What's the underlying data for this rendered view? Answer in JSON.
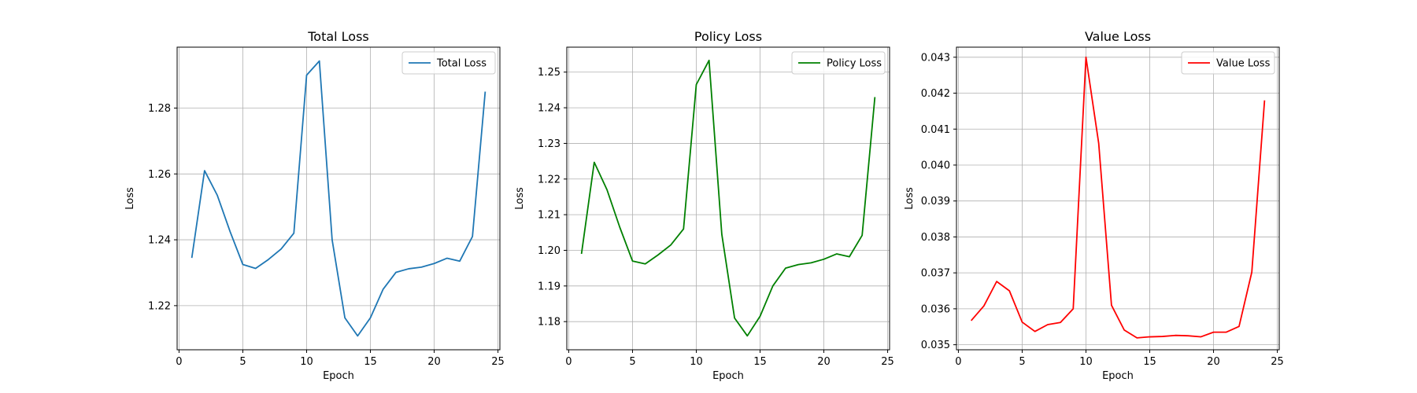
{
  "chart_data": [
    {
      "type": "line",
      "title": "Total Loss",
      "xlabel": "Epoch",
      "ylabel": "Loss",
      "xlim": [
        -0.15,
        25.15
      ],
      "ylim": [
        1.2066,
        1.2985
      ],
      "xticks": [
        0,
        5,
        10,
        15,
        20,
        25
      ],
      "yticks": [
        1.22,
        1.24,
        1.26,
        1.28
      ],
      "ytick_labels": [
        "1.22",
        "1.24",
        "1.26",
        "1.28"
      ],
      "grid": true,
      "legend_position": "top-right",
      "series": [
        {
          "name": "Total Loss",
          "color": "#1f77b4",
          "x": [
            1,
            2,
            3,
            4,
            5,
            6,
            7,
            8,
            9,
            10,
            11,
            12,
            13,
            14,
            15,
            16,
            17,
            18,
            19,
            20,
            21,
            22,
            23,
            24
          ],
          "y": [
            1.2345,
            1.261,
            1.2535,
            1.2425,
            1.2325,
            1.2313,
            1.234,
            1.2372,
            1.242,
            1.29,
            1.2943,
            1.24,
            1.2163,
            1.2108,
            1.2163,
            1.225,
            1.2301,
            1.2312,
            1.2317,
            1.2328,
            1.2344,
            1.2335,
            1.241,
            1.285
          ]
        }
      ]
    },
    {
      "type": "line",
      "title": "Policy Loss",
      "xlabel": "Epoch",
      "ylabel": "Loss",
      "xlim": [
        -0.15,
        25.15
      ],
      "ylim": [
        1.1721,
        1.257
      ],
      "xticks": [
        0,
        5,
        10,
        15,
        20,
        25
      ],
      "yticks": [
        1.18,
        1.19,
        1.2,
        1.21,
        1.22,
        1.23,
        1.24,
        1.25
      ],
      "ytick_labels": [
        "1.18",
        "1.19",
        "1.20",
        "1.21",
        "1.22",
        "1.23",
        "1.24",
        "1.25"
      ],
      "grid": true,
      "legend_position": "top-right",
      "series": [
        {
          "name": "Policy Loss",
          "color": "#008000",
          "x": [
            1,
            2,
            3,
            4,
            5,
            6,
            7,
            8,
            9,
            10,
            11,
            12,
            13,
            14,
            15,
            16,
            17,
            18,
            19,
            20,
            21,
            22,
            23,
            24
          ],
          "y": [
            1.199,
            1.2247,
            1.217,
            1.2065,
            1.197,
            1.1962,
            1.1987,
            1.2015,
            1.206,
            1.2465,
            1.2533,
            1.2045,
            1.181,
            1.176,
            1.1815,
            1.19,
            1.195,
            1.196,
            1.1965,
            1.1975,
            1.199,
            1.1982,
            1.2042,
            1.243
          ]
        }
      ]
    },
    {
      "type": "line",
      "title": "Value Loss",
      "xlabel": "Epoch",
      "ylabel": "Loss",
      "xlim": [
        -0.15,
        25.15
      ],
      "ylim": [
        0.03486,
        0.04328
      ],
      "xticks": [
        0,
        5,
        10,
        15,
        20,
        25
      ],
      "yticks": [
        0.035,
        0.036,
        0.037,
        0.038,
        0.039,
        0.04,
        0.041,
        0.042,
        0.043
      ],
      "ytick_labels": [
        "0.035",
        "0.036",
        "0.037",
        "0.038",
        "0.039",
        "0.040",
        "0.041",
        "0.042",
        "0.043"
      ],
      "grid": true,
      "legend_position": "top-right",
      "series": [
        {
          "name": "Value Loss",
          "color": "#ff0000",
          "x": [
            1,
            2,
            3,
            4,
            5,
            6,
            7,
            8,
            9,
            10,
            11,
            12,
            13,
            14,
            15,
            16,
            17,
            18,
            19,
            20,
            21,
            22,
            23,
            24
          ],
          "y": [
            0.03567,
            0.03608,
            0.03676,
            0.0365,
            0.03563,
            0.03537,
            0.03556,
            0.03562,
            0.036,
            0.043,
            0.0406,
            0.0361,
            0.03541,
            0.03519,
            0.03522,
            0.03523,
            0.03526,
            0.03525,
            0.03522,
            0.03535,
            0.03535,
            0.03551,
            0.03702,
            0.0418
          ]
        }
      ]
    }
  ]
}
